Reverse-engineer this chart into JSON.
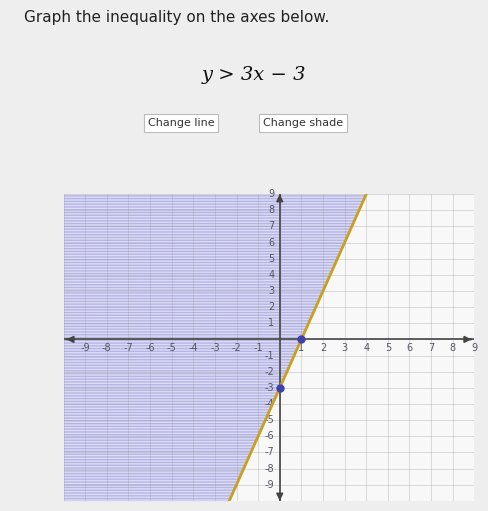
{
  "title": "Graph the inequality on the axes below.",
  "inequality_label": "y > 3x − 3",
  "slope": 3,
  "intercept": -3,
  "xmin": -10,
  "xmax": 9,
  "ymin": -10,
  "ymax": 9,
  "line_color": "#c8a020",
  "shade_fill_color": "#d8d8f8",
  "shade_fill_alpha": 0.85,
  "hatch_edge_color": "#9090cc",
  "hatch_style": "----",
  "line_style": "-",
  "line_width": 2.0,
  "dot_color": "#4040aa",
  "dot_size": 30,
  "key_points": [
    [
      0,
      -3
    ],
    [
      1,
      0
    ]
  ],
  "bg_color": "#eeeeee",
  "plot_bg_color": "#f8f8f8",
  "grid_color": "#aaaaaa",
  "axis_color": "#444444",
  "title_fontsize": 11,
  "label_fontsize": 14,
  "tick_fontsize": 7,
  "button1": "Change line",
  "button2": "Change shade"
}
